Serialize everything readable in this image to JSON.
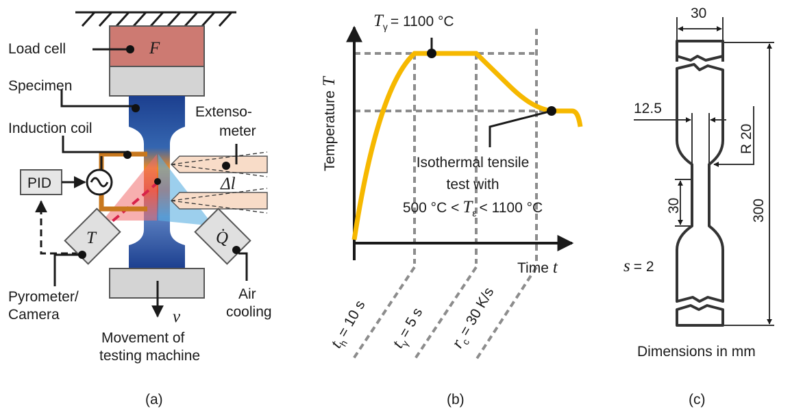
{
  "panel_a": {
    "load_cell": "Load cell",
    "force": "F",
    "specimen": "Specimen",
    "induction_coil": "Induction coil",
    "extensometer": [
      "Extenso-",
      "meter"
    ],
    "pid": "PID",
    "elongation": "Δl",
    "pyrometer_symbol": "T",
    "heat_flow": "Q̇",
    "pyrometer": [
      "Pyrometer/",
      "Camera"
    ],
    "air_cooling": [
      "Air",
      "cooling"
    ],
    "velocity": "v",
    "movement": [
      "Movement of",
      "testing machine"
    ],
    "caption": "(a)"
  },
  "panel_b": {
    "t_gamma": {
      "symbol": "T",
      "sub": "γ",
      "text": "= 1100 °C"
    },
    "y_axis": {
      "label": "Temperature",
      "symbol": "T"
    },
    "x_axis": {
      "label": "Time",
      "symbol": "t"
    },
    "annotation": [
      "Isothermal tensile",
      "test with",
      {
        "before": "500 °C <",
        "symbol": "T",
        "sub": "ε",
        "after": "< 1100 °C"
      }
    ],
    "times": [
      {
        "symbol": "t",
        "sub": "h",
        "text": "= 10 s"
      },
      {
        "symbol": "t",
        "sub": "γ",
        "text": "= 5 s"
      },
      {
        "symbol": "r",
        "sub": "c",
        "text": "= 30 K/s"
      }
    ],
    "caption": "(b)"
  },
  "panel_c": {
    "width": "30",
    "neck_width": "12.5",
    "radius": "R 20",
    "gauge_length": "30",
    "length": "300",
    "thickness": {
      "symbol": "s",
      "text": "= 2"
    },
    "note": "Dimensions in mm",
    "caption": "(c)"
  }
}
